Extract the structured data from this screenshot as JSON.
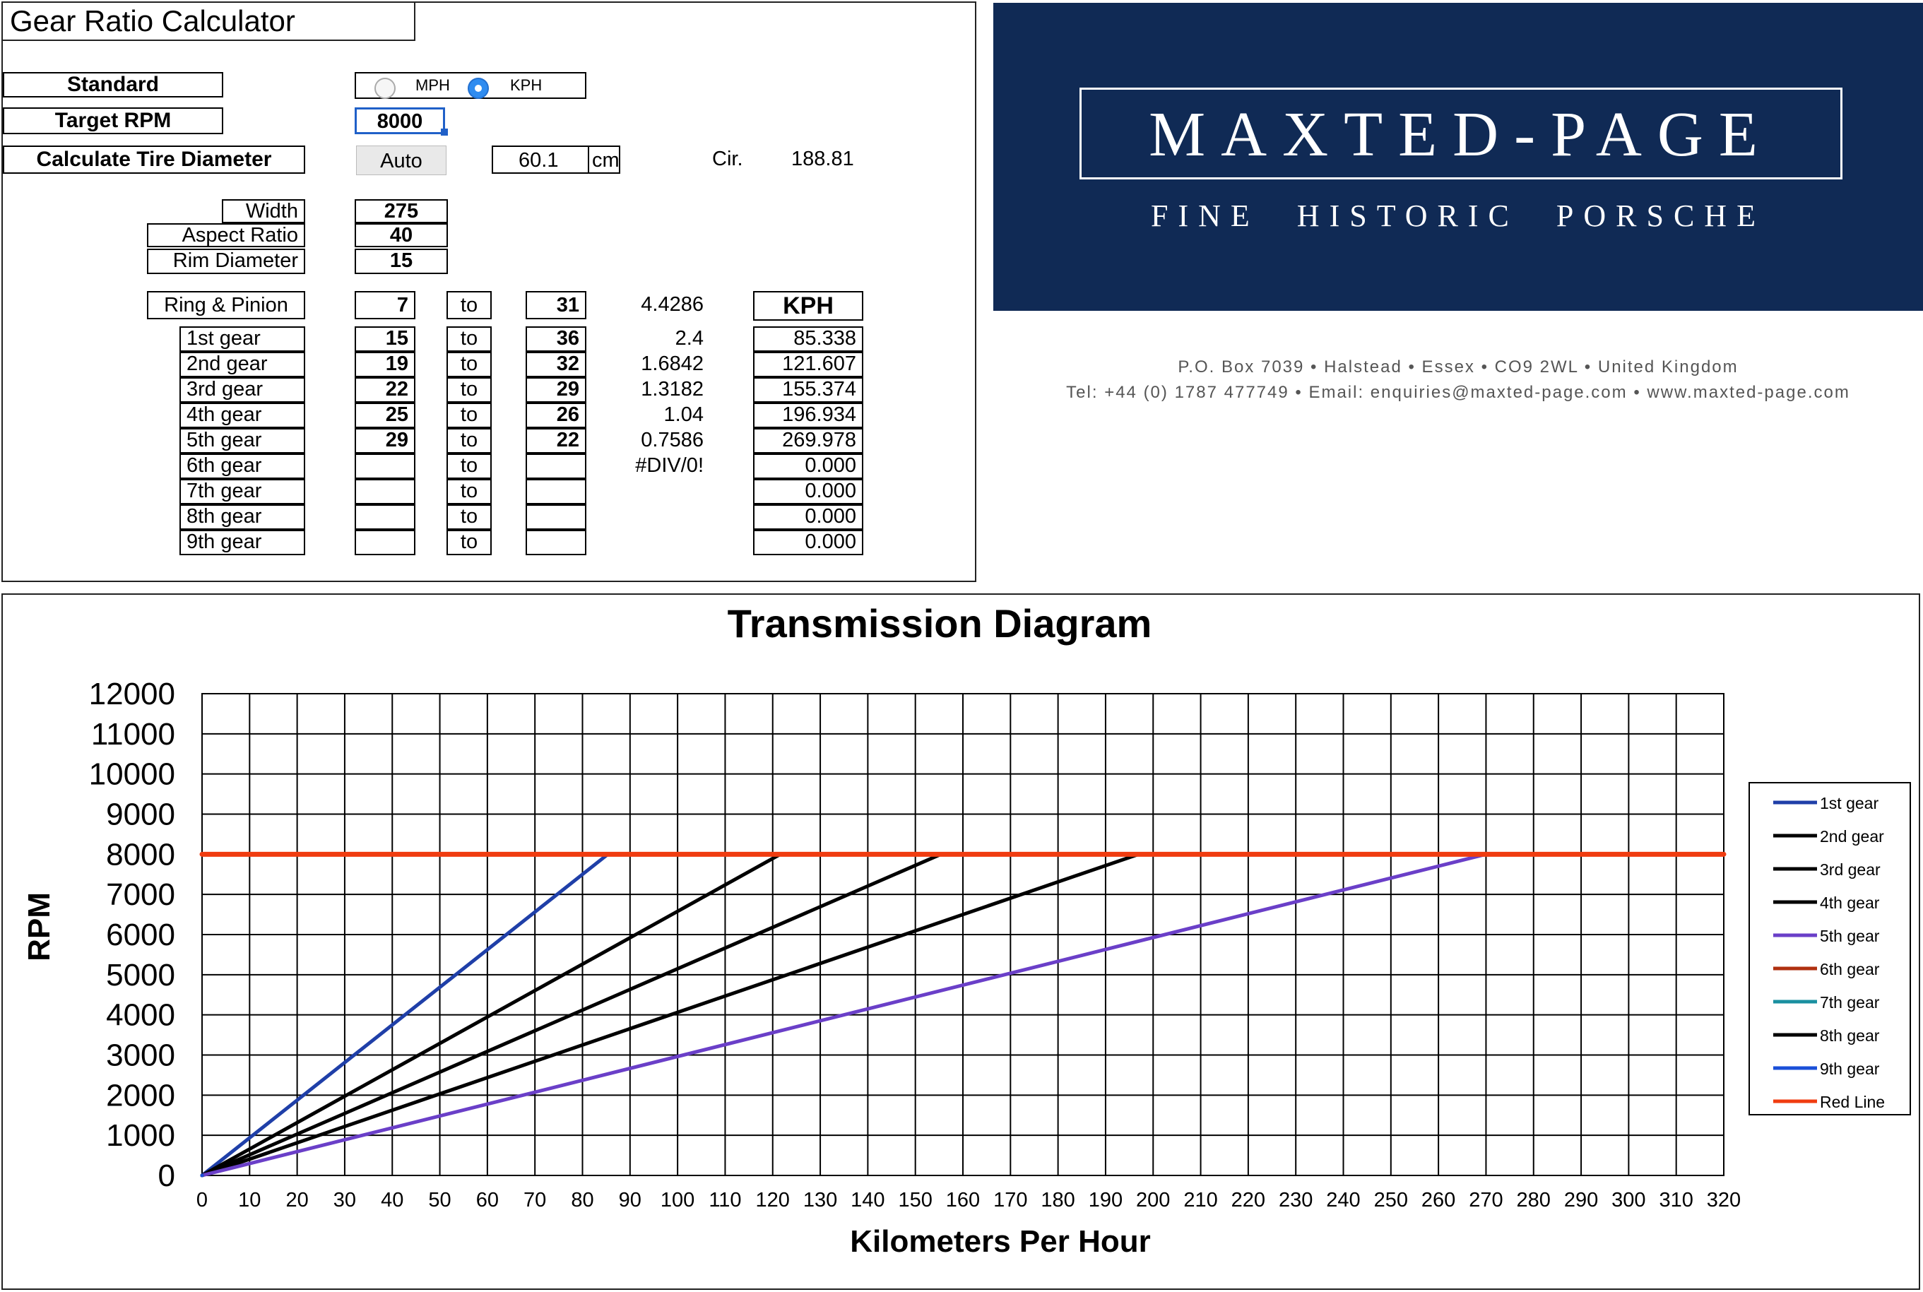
{
  "app": {
    "title": "Gear Ratio Calculator"
  },
  "form": {
    "standard_label": "Standard",
    "unit_mph_label": "MPH",
    "unit_kph_label": "KPH",
    "unit_selected": "KPH",
    "target_rpm_label": "Target RPM",
    "target_rpm_value": "8000",
    "calc_tire_label": "Calculate Tire Diameter",
    "auto_button_label": "Auto",
    "tire_diameter_value": "60.1",
    "tire_diameter_unit": "cm",
    "circumference_label": "Cir.",
    "circumference_value": "188.81",
    "width_label": "Width",
    "width_value": "275",
    "aspect_label": "Aspect Ratio",
    "aspect_value": "40",
    "rim_label": "Rim Diameter",
    "rim_value": "15",
    "ring_label": "Ring & Pinion",
    "ring_a": "7",
    "ring_to": "to",
    "ring_b": "31",
    "ring_ratio": "4.4286",
    "speed_header": "KPH"
  },
  "gears": [
    {
      "label": "1st gear",
      "a": "15",
      "to": "to",
      "b": "36",
      "ratio": "2.4",
      "speed": "85.338"
    },
    {
      "label": "2nd gear",
      "a": "19",
      "to": "to",
      "b": "32",
      "ratio": "1.6842",
      "speed": "121.607"
    },
    {
      "label": "3rd gear",
      "a": "22",
      "to": "to",
      "b": "29",
      "ratio": "1.3182",
      "speed": "155.374"
    },
    {
      "label": "4th gear",
      "a": "25",
      "to": "to",
      "b": "26",
      "ratio": "1.04",
      "speed": "196.934"
    },
    {
      "label": "5th gear",
      "a": "29",
      "to": "to",
      "b": "22",
      "ratio": "0.7586",
      "speed": "269.978"
    },
    {
      "label": "6th gear",
      "a": "",
      "to": "to",
      "b": "",
      "ratio": "#DIV/0!",
      "speed": "0.000"
    },
    {
      "label": "7th gear",
      "a": "",
      "to": "to",
      "b": "",
      "ratio": "",
      "speed": "0.000"
    },
    {
      "label": "8th gear",
      "a": "",
      "to": "to",
      "b": "",
      "ratio": "",
      "speed": "0.000"
    },
    {
      "label": "9th gear",
      "a": "",
      "to": "to",
      "b": "",
      "ratio": "",
      "speed": "0.000"
    }
  ],
  "logo": {
    "name": "MAXTED-PAGE",
    "tagline": "FINE HISTORIC PORSCHE",
    "address": "P.O. Box 7039 • Halstead • Essex • CO9 2WL • United Kingdom",
    "contact": "Tel: +44 (0) 1787 477749 • Email: enquiries@maxted-page.com • www.maxted-page.com",
    "bg_color": "#102a55"
  },
  "chart_data": {
    "type": "line",
    "title": "Transmission Diagram",
    "xlabel": "Kilometers Per Hour",
    "ylabel": "RPM",
    "xlim": [
      0,
      320
    ],
    "ylim": [
      0,
      12000
    ],
    "x_ticks": [
      0,
      10,
      20,
      30,
      40,
      50,
      60,
      70,
      80,
      90,
      100,
      110,
      120,
      130,
      140,
      150,
      160,
      170,
      180,
      190,
      200,
      210,
      220,
      230,
      240,
      250,
      260,
      270,
      280,
      290,
      300,
      310,
      320
    ],
    "y_ticks": [
      0,
      1000,
      2000,
      3000,
      4000,
      5000,
      6000,
      7000,
      8000,
      9000,
      10000,
      11000,
      12000
    ],
    "grid": true,
    "legend_position": "right",
    "series": [
      {
        "name": "1st gear",
        "color": "#1f3fa8",
        "x": [
          0,
          85.338
        ],
        "y": [
          0,
          8000
        ]
      },
      {
        "name": "2nd gear",
        "color": "#000000",
        "x": [
          0,
          121.607
        ],
        "y": [
          0,
          8000
        ]
      },
      {
        "name": "3rd gear",
        "color": "#000000",
        "x": [
          0,
          155.374
        ],
        "y": [
          0,
          8000
        ]
      },
      {
        "name": "4th gear",
        "color": "#000000",
        "x": [
          0,
          196.934
        ],
        "y": [
          0,
          8000
        ]
      },
      {
        "name": "5th gear",
        "color": "#6a3fc8",
        "x": [
          0,
          269.978
        ],
        "y": [
          0,
          8000
        ]
      },
      {
        "name": "6th gear",
        "color": "#b03010",
        "x": [
          0,
          0
        ],
        "y": [
          0,
          0
        ]
      },
      {
        "name": "7th gear",
        "color": "#1a90a0",
        "x": [
          0,
          0
        ],
        "y": [
          0,
          0
        ]
      },
      {
        "name": "8th gear",
        "color": "#000000",
        "x": [
          0,
          0
        ],
        "y": [
          0,
          0
        ]
      },
      {
        "name": "9th gear",
        "color": "#1a4fd8",
        "x": [
          0,
          0
        ],
        "y": [
          0,
          0
        ]
      },
      {
        "name": "Red Line",
        "color": "#f03c10",
        "x": [
          0,
          320
        ],
        "y": [
          8000,
          8000
        ]
      }
    ]
  }
}
